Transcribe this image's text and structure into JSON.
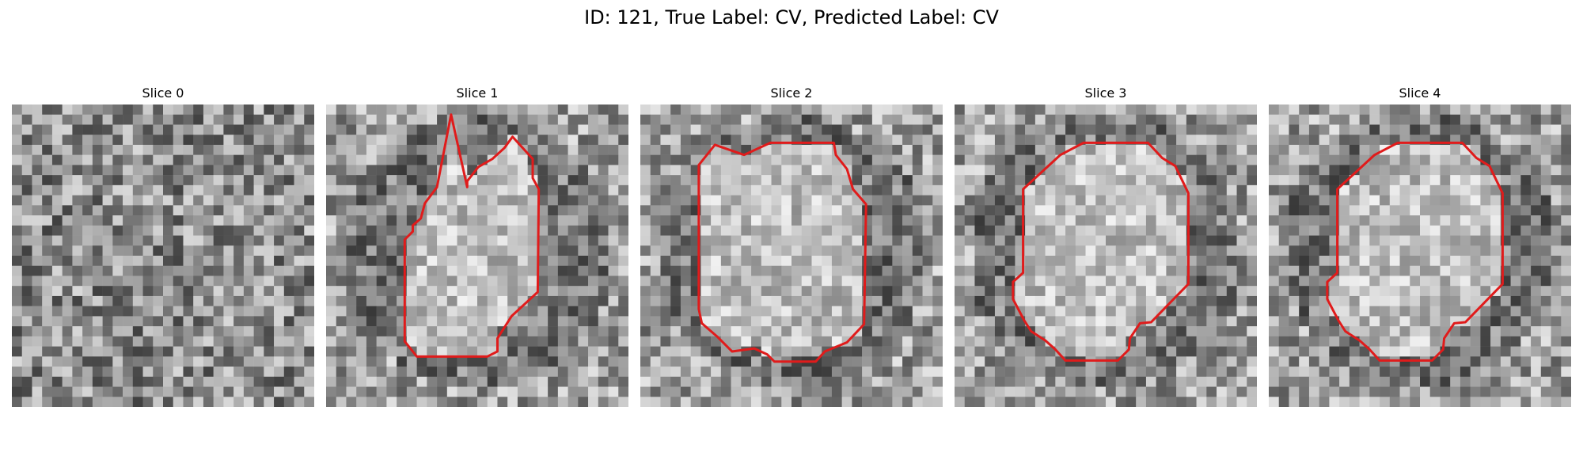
{
  "figure": {
    "title": "ID: 121, True Label: CV, Predicted Label: CV"
  },
  "panels": [
    {
      "title": "Slice 0",
      "seed": 11,
      "has_contour": false
    },
    {
      "title": "Slice 1",
      "seed": 23,
      "has_contour": true
    },
    {
      "title": "Slice 2",
      "seed": 37,
      "has_contour": true
    },
    {
      "title": "Slice 3",
      "seed": 41,
      "has_contour": true
    },
    {
      "title": "Slice 4",
      "seed": 53,
      "has_contour": true
    }
  ],
  "grid_size": 30,
  "contour_color": "#e01b1b",
  "image_colormap": "grayscale"
}
